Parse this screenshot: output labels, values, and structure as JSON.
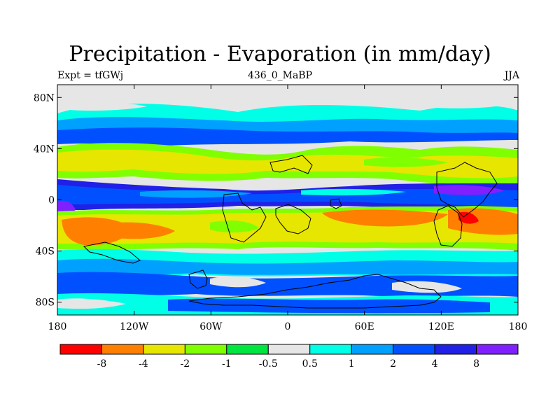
{
  "title": "Precipitation - Evaporation (in mm/day)",
  "header": {
    "left": "Expt = tfGWj",
    "center": "436_0_MaBP",
    "right": "JJA"
  },
  "map": {
    "lon_range": [
      -180,
      180
    ],
    "lat_range": [
      -90,
      90
    ],
    "y_ticks": [
      "80N",
      "40N",
      "0",
      "40S",
      "80S"
    ],
    "y_tick_values": [
      80,
      40,
      0,
      -40,
      -80
    ],
    "x_ticks": [
      "180",
      "120W",
      "60W",
      "0",
      "60E",
      "120E",
      "180"
    ],
    "x_tick_values": [
      -180,
      -120,
      -60,
      0,
      60,
      120,
      180
    ]
  },
  "colorbar": {
    "colors": [
      "#ff0000",
      "#ff8000",
      "#e6e600",
      "#80ff00",
      "#00e640",
      "#e6e6e6",
      "#00ffe6",
      "#00a0ff",
      "#0050ff",
      "#2020e6",
      "#8020ff"
    ],
    "labels": [
      "-8",
      "-4",
      "-2",
      "-1",
      "-0.5",
      "0.5",
      "1",
      "2",
      "4",
      "8"
    ]
  }
}
